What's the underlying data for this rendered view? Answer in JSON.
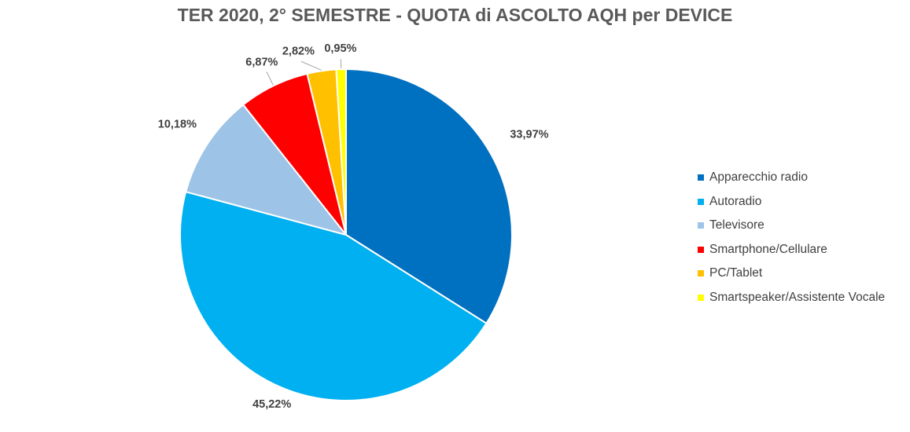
{
  "chart_data": {
    "type": "pie",
    "title": "TER 2020, 2° SEMESTRE - QUOTA di ASCOLTO AQH per DEVICE",
    "slices": [
      {
        "name": "Apparecchio radio",
        "value": 33.97,
        "label": "33,97%",
        "color": "#0070C0"
      },
      {
        "name": "Autoradio",
        "value": 45.22,
        "label": "45,22%",
        "color": "#00B0F0"
      },
      {
        "name": "Televisore",
        "value": 10.18,
        "label": "10,18%",
        "color": "#9DC3E6"
      },
      {
        "name": "Smartphone/Cellulare",
        "value": 6.87,
        "label": "6,87%",
        "color": "#FF0000"
      },
      {
        "name": "PC/Tablet",
        "value": 2.82,
        "label": "2,82%",
        "color": "#FFC000"
      },
      {
        "name": "Smartspeaker/Assistente Vocale",
        "value": 0.95,
        "label": "0,95%",
        "color": "#FFFF00"
      }
    ],
    "legend_position": "right"
  }
}
